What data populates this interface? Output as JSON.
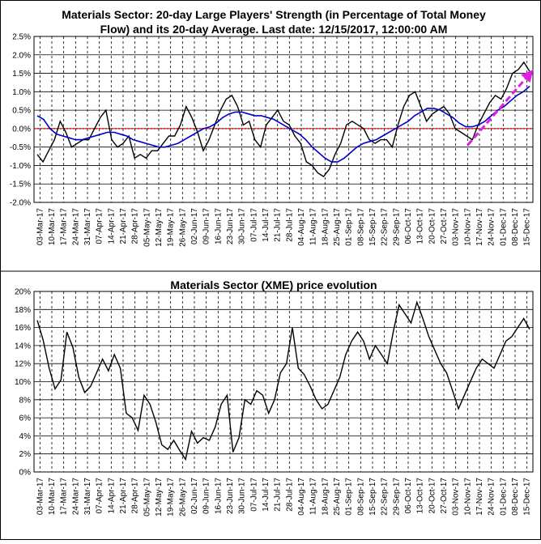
{
  "chart_data": [
    {
      "type": "line",
      "title": [
        "Materials Sector: 20-day Large Players' Strength (in Percentage of Total Money",
        "Flow) and its 20-day Average. Last date: 12/15/2017, 12:00:00 AM"
      ],
      "y_ticks": [
        "2.5%",
        "2.0%",
        "1.5%",
        "1.0%",
        "0.5%",
        "0.0%",
        "-0.5%",
        "-1.0%",
        "-1.5%",
        "-2.0%"
      ],
      "ylim": [
        -2.0,
        2.5
      ],
      "x_ticks": [
        "03-Mar-17",
        "10-Mar-17",
        "17-Mar-17",
        "24-Mar-17",
        "31-Mar-17",
        "07-Apr-17",
        "14-Apr-17",
        "21-Apr-17",
        "28-Apr-17",
        "05-May-17",
        "12-May-17",
        "19-May-17",
        "26-May-17",
        "02-Jun-17",
        "09-Jun-17",
        "16-Jun-17",
        "23-Jun-17",
        "30-Jun-17",
        "07-Jul-17",
        "14-Jul-17",
        "21-Jul-17",
        "28-Jul-17",
        "04-Aug-17",
        "11-Aug-17",
        "18-Aug-17",
        "25-Aug-17",
        "01-Sep-17",
        "08-Sep-17",
        "15-Sep-17",
        "22-Sep-17",
        "29-Sep-17",
        "06-Oct-17",
        "13-Oct-17",
        "20-Oct-17",
        "27-Oct-17",
        "03-Nov-17",
        "10-Nov-17",
        "17-Nov-17",
        "24-Nov-17",
        "01-Dec-17",
        "08-Dec-17",
        "15-Dec-17"
      ],
      "grid": true,
      "zero_line_color": "#ff0000",
      "trend_arrow": {
        "color": "#e020e0",
        "from": [
          "10-Nov-17",
          -0.45
        ],
        "to": [
          "15-Dec-17",
          1.55
        ]
      },
      "series": [
        {
          "color": "#000000",
          "values": [
            -0.7,
            -0.9,
            -0.6,
            -0.3,
            0.2,
            -0.1,
            -0.5,
            -0.4,
            -0.3,
            -0.3,
            0.0,
            0.3,
            0.5,
            -0.3,
            -0.5,
            -0.4,
            -0.2,
            -0.8,
            -0.7,
            -0.8,
            -0.6,
            -0.6,
            -0.4,
            -0.2,
            -0.2,
            0.1,
            0.6,
            0.3,
            -0.1,
            -0.6,
            -0.3,
            0.1,
            0.5,
            0.8,
            0.9,
            0.6,
            0.1,
            0.2,
            -0.3,
            -0.5,
            0.1,
            0.3,
            0.5,
            0.2,
            0.1,
            -0.2,
            -0.4,
            -0.9,
            -1.0,
            -1.2,
            -1.3,
            -1.1,
            -0.7,
            -0.4,
            0.1,
            0.2,
            0.1,
            0.0,
            -0.3,
            -0.4,
            -0.3,
            -0.3,
            -0.5,
            0.1,
            0.6,
            0.9,
            1.0,
            0.6,
            0.2,
            0.4,
            0.5,
            0.6,
            0.4,
            0.0,
            -0.1,
            -0.2,
            -0.3,
            0.1,
            0.4,
            0.7,
            0.9,
            0.8,
            1.1,
            1.5,
            1.6,
            1.8,
            1.55
          ]
        },
        {
          "color": "#0000cc",
          "values": [
            0.35,
            0.25,
            0.0,
            -0.15,
            -0.2,
            -0.25,
            -0.3,
            -0.3,
            -0.25,
            -0.2,
            -0.15,
            -0.1,
            -0.1,
            -0.15,
            -0.2,
            -0.3,
            -0.35,
            -0.4,
            -0.45,
            -0.5,
            -0.5,
            -0.45,
            -0.4,
            -0.3,
            -0.2,
            -0.1,
            0.0,
            0.05,
            0.15,
            0.3,
            0.4,
            0.45,
            0.45,
            0.4,
            0.35,
            0.35,
            0.3,
            0.25,
            0.15,
            0.05,
            -0.05,
            -0.15,
            -0.3,
            -0.5,
            -0.65,
            -0.8,
            -0.9,
            -0.9,
            -0.8,
            -0.65,
            -0.5,
            -0.4,
            -0.35,
            -0.3,
            -0.2,
            -0.1,
            0.0,
            0.1,
            0.2,
            0.35,
            0.45,
            0.55,
            0.55,
            0.5,
            0.4,
            0.3,
            0.15,
            0.05,
            0.05,
            0.1,
            0.2,
            0.35,
            0.5,
            0.6,
            0.75,
            0.9,
            1.0,
            1.15
          ]
        }
      ]
    },
    {
      "type": "line",
      "title": [
        "Materials Sector (XME) price evolution"
      ],
      "y_ticks": [
        "20%",
        "18%",
        "16%",
        "14%",
        "12%",
        "10%",
        "8%",
        "6%",
        "4%",
        "2%",
        "0%"
      ],
      "ylim": [
        0,
        20
      ],
      "x_ticks": [
        "03-Mar-17",
        "10-Mar-17",
        "17-Mar-17",
        "24-Mar-17",
        "31-Mar-17",
        "07-Apr-17",
        "14-Apr-17",
        "21-Apr-17",
        "28-Apr-17",
        "05-May-17",
        "12-May-17",
        "19-May-17",
        "26-May-17",
        "02-Jun-17",
        "09-Jun-17",
        "16-Jun-17",
        "23-Jun-17",
        "30-Jun-17",
        "07-Jul-17",
        "14-Jul-17",
        "21-Jul-17",
        "28-Jul-17",
        "04-Aug-17",
        "11-Aug-17",
        "18-Aug-17",
        "25-Aug-17",
        "01-Sep-17",
        "08-Sep-17",
        "15-Sep-17",
        "22-Sep-17",
        "29-Sep-17",
        "06-Oct-17",
        "13-Oct-17",
        "20-Oct-17",
        "27-Oct-17",
        "03-Nov-17",
        "10-Nov-17",
        "17-Nov-17",
        "24-Nov-17",
        "01-Dec-17",
        "08-Dec-17",
        "15-Dec-17"
      ],
      "grid": true,
      "series": [
        {
          "color": "#000000",
          "values": [
            16.8,
            14.6,
            11.5,
            9.2,
            10.2,
            15.5,
            13.8,
            10.5,
            8.8,
            9.5,
            11.0,
            12.5,
            11.2,
            13.0,
            11.5,
            6.5,
            6.0,
            4.6,
            8.5,
            7.5,
            5.5,
            3.0,
            2.5,
            3.5,
            2.4,
            1.4,
            4.5,
            3.2,
            3.8,
            3.5,
            5.0,
            7.5,
            8.5,
            2.2,
            3.8,
            8.0,
            7.5,
            9.0,
            8.5,
            6.5,
            8.0,
            11.0,
            12.0,
            16.0,
            11.5,
            10.8,
            9.5,
            8.0,
            7.0,
            7.5,
            9.0,
            10.5,
            13.0,
            14.5,
            15.5,
            14.5,
            12.5,
            14.0,
            13.0,
            12.0,
            15.5,
            18.5,
            17.5,
            16.5,
            18.8,
            17.0,
            15.0,
            13.5,
            12.0,
            11.0,
            9.0,
            7.0,
            8.5,
            10.0,
            11.5,
            12.5,
            12.0,
            11.5,
            13.0,
            14.5,
            15.0,
            16.0,
            17.0,
            15.8
          ]
        }
      ]
    }
  ]
}
